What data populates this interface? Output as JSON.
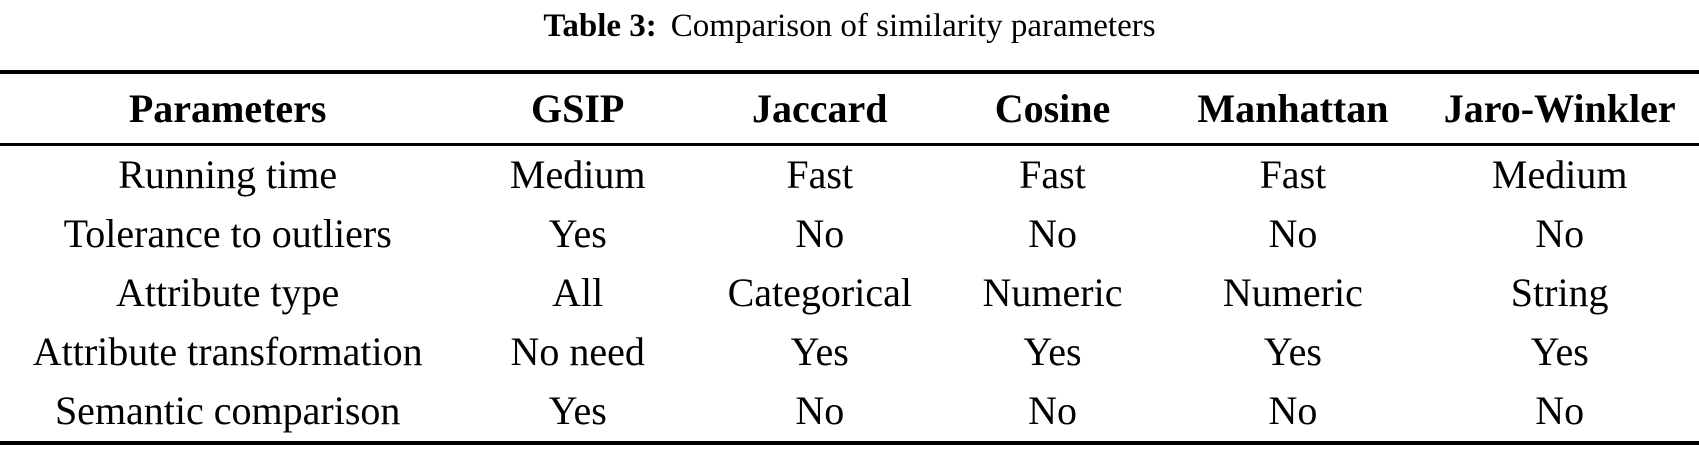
{
  "caption": {
    "label": "Table 3:",
    "text": "Comparison of similarity parameters"
  },
  "table": {
    "columns": [
      "Parameters",
      "GSIP",
      "Jaccard",
      "Cosine",
      "Manhattan",
      "Jaro-Winkler"
    ],
    "rows": [
      {
        "cells": [
          "Running time",
          "Medium",
          "Fast",
          "Fast",
          "Fast",
          "Medium"
        ]
      },
      {
        "cells": [
          "Tolerance to outliers",
          "Yes",
          "No",
          "No",
          "No",
          "No"
        ]
      },
      {
        "cells": [
          "Attribute type",
          "All",
          "Categorical",
          "Numeric",
          "Numeric",
          "String"
        ]
      },
      {
        "cells": [
          "Attribute transformation",
          "No need",
          "Yes",
          "Yes",
          "Yes",
          "Yes"
        ]
      },
      {
        "cells": [
          "Semantic comparison",
          "Yes",
          "No",
          "No",
          "No",
          "No"
        ]
      }
    ]
  },
  "colors": {
    "text": "#000000",
    "background": "#ffffff",
    "rule": "#000000"
  }
}
